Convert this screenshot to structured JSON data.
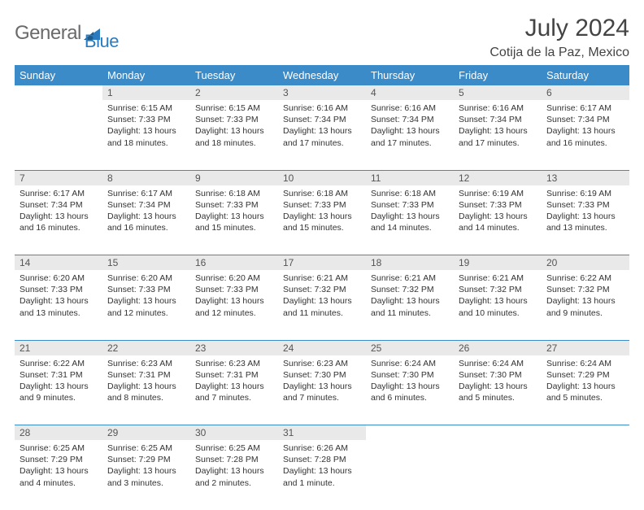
{
  "logo": {
    "general": "General",
    "blue": "Blue"
  },
  "title": "July 2024",
  "location": "Cotija de la Paz, Mexico",
  "colors": {
    "header_bg": "#3b8bc9",
    "header_text": "#ffffff",
    "daynum_bg": "#e9e9e9",
    "row_divider": "#3b8bc9",
    "text": "#333333",
    "logo_gray": "#6a6a6a",
    "logo_blue": "#2a7bbf"
  },
  "weekdays": [
    "Sunday",
    "Monday",
    "Tuesday",
    "Wednesday",
    "Thursday",
    "Friday",
    "Saturday"
  ],
  "weeks": [
    {
      "nums": [
        "",
        "1",
        "2",
        "3",
        "4",
        "5",
        "6"
      ],
      "cells": [
        {
          "sunrise": "",
          "sunset": "",
          "daylight": ""
        },
        {
          "sunrise": "Sunrise: 6:15 AM",
          "sunset": "Sunset: 7:33 PM",
          "daylight": "Daylight: 13 hours and 18 minutes."
        },
        {
          "sunrise": "Sunrise: 6:15 AM",
          "sunset": "Sunset: 7:33 PM",
          "daylight": "Daylight: 13 hours and 18 minutes."
        },
        {
          "sunrise": "Sunrise: 6:16 AM",
          "sunset": "Sunset: 7:34 PM",
          "daylight": "Daylight: 13 hours and 17 minutes."
        },
        {
          "sunrise": "Sunrise: 6:16 AM",
          "sunset": "Sunset: 7:34 PM",
          "daylight": "Daylight: 13 hours and 17 minutes."
        },
        {
          "sunrise": "Sunrise: 6:16 AM",
          "sunset": "Sunset: 7:34 PM",
          "daylight": "Daylight: 13 hours and 17 minutes."
        },
        {
          "sunrise": "Sunrise: 6:17 AM",
          "sunset": "Sunset: 7:34 PM",
          "daylight": "Daylight: 13 hours and 16 minutes."
        }
      ]
    },
    {
      "nums": [
        "7",
        "8",
        "9",
        "10",
        "11",
        "12",
        "13"
      ],
      "cells": [
        {
          "sunrise": "Sunrise: 6:17 AM",
          "sunset": "Sunset: 7:34 PM",
          "daylight": "Daylight: 13 hours and 16 minutes."
        },
        {
          "sunrise": "Sunrise: 6:17 AM",
          "sunset": "Sunset: 7:34 PM",
          "daylight": "Daylight: 13 hours and 16 minutes."
        },
        {
          "sunrise": "Sunrise: 6:18 AM",
          "sunset": "Sunset: 7:33 PM",
          "daylight": "Daylight: 13 hours and 15 minutes."
        },
        {
          "sunrise": "Sunrise: 6:18 AM",
          "sunset": "Sunset: 7:33 PM",
          "daylight": "Daylight: 13 hours and 15 minutes."
        },
        {
          "sunrise": "Sunrise: 6:18 AM",
          "sunset": "Sunset: 7:33 PM",
          "daylight": "Daylight: 13 hours and 14 minutes."
        },
        {
          "sunrise": "Sunrise: 6:19 AM",
          "sunset": "Sunset: 7:33 PM",
          "daylight": "Daylight: 13 hours and 14 minutes."
        },
        {
          "sunrise": "Sunrise: 6:19 AM",
          "sunset": "Sunset: 7:33 PM",
          "daylight": "Daylight: 13 hours and 13 minutes."
        }
      ]
    },
    {
      "nums": [
        "14",
        "15",
        "16",
        "17",
        "18",
        "19",
        "20"
      ],
      "cells": [
        {
          "sunrise": "Sunrise: 6:20 AM",
          "sunset": "Sunset: 7:33 PM",
          "daylight": "Daylight: 13 hours and 13 minutes."
        },
        {
          "sunrise": "Sunrise: 6:20 AM",
          "sunset": "Sunset: 7:33 PM",
          "daylight": "Daylight: 13 hours and 12 minutes."
        },
        {
          "sunrise": "Sunrise: 6:20 AM",
          "sunset": "Sunset: 7:33 PM",
          "daylight": "Daylight: 13 hours and 12 minutes."
        },
        {
          "sunrise": "Sunrise: 6:21 AM",
          "sunset": "Sunset: 7:32 PM",
          "daylight": "Daylight: 13 hours and 11 minutes."
        },
        {
          "sunrise": "Sunrise: 6:21 AM",
          "sunset": "Sunset: 7:32 PM",
          "daylight": "Daylight: 13 hours and 11 minutes."
        },
        {
          "sunrise": "Sunrise: 6:21 AM",
          "sunset": "Sunset: 7:32 PM",
          "daylight": "Daylight: 13 hours and 10 minutes."
        },
        {
          "sunrise": "Sunrise: 6:22 AM",
          "sunset": "Sunset: 7:32 PM",
          "daylight": "Daylight: 13 hours and 9 minutes."
        }
      ]
    },
    {
      "nums": [
        "21",
        "22",
        "23",
        "24",
        "25",
        "26",
        "27"
      ],
      "cells": [
        {
          "sunrise": "Sunrise: 6:22 AM",
          "sunset": "Sunset: 7:31 PM",
          "daylight": "Daylight: 13 hours and 9 minutes."
        },
        {
          "sunrise": "Sunrise: 6:23 AM",
          "sunset": "Sunset: 7:31 PM",
          "daylight": "Daylight: 13 hours and 8 minutes."
        },
        {
          "sunrise": "Sunrise: 6:23 AM",
          "sunset": "Sunset: 7:31 PM",
          "daylight": "Daylight: 13 hours and 7 minutes."
        },
        {
          "sunrise": "Sunrise: 6:23 AM",
          "sunset": "Sunset: 7:30 PM",
          "daylight": "Daylight: 13 hours and 7 minutes."
        },
        {
          "sunrise": "Sunrise: 6:24 AM",
          "sunset": "Sunset: 7:30 PM",
          "daylight": "Daylight: 13 hours and 6 minutes."
        },
        {
          "sunrise": "Sunrise: 6:24 AM",
          "sunset": "Sunset: 7:30 PM",
          "daylight": "Daylight: 13 hours and 5 minutes."
        },
        {
          "sunrise": "Sunrise: 6:24 AM",
          "sunset": "Sunset: 7:29 PM",
          "daylight": "Daylight: 13 hours and 5 minutes."
        }
      ]
    },
    {
      "nums": [
        "28",
        "29",
        "30",
        "31",
        "",
        "",
        ""
      ],
      "cells": [
        {
          "sunrise": "Sunrise: 6:25 AM",
          "sunset": "Sunset: 7:29 PM",
          "daylight": "Daylight: 13 hours and 4 minutes."
        },
        {
          "sunrise": "Sunrise: 6:25 AM",
          "sunset": "Sunset: 7:29 PM",
          "daylight": "Daylight: 13 hours and 3 minutes."
        },
        {
          "sunrise": "Sunrise: 6:25 AM",
          "sunset": "Sunset: 7:28 PM",
          "daylight": "Daylight: 13 hours and 2 minutes."
        },
        {
          "sunrise": "Sunrise: 6:26 AM",
          "sunset": "Sunset: 7:28 PM",
          "daylight": "Daylight: 13 hours and 1 minute."
        },
        {
          "sunrise": "",
          "sunset": "",
          "daylight": ""
        },
        {
          "sunrise": "",
          "sunset": "",
          "daylight": ""
        },
        {
          "sunrise": "",
          "sunset": "",
          "daylight": ""
        }
      ]
    }
  ]
}
